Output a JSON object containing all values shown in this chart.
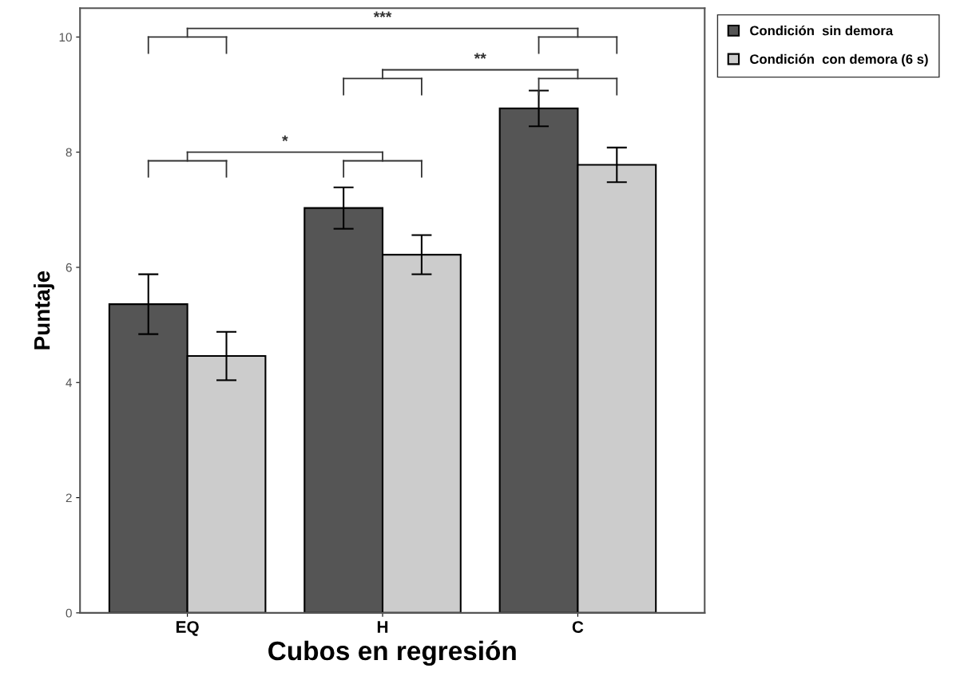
{
  "chart_data": {
    "type": "bar",
    "xlabel": "Cubos en regresión",
    "ylabel": "Puntaje",
    "categories": [
      "EQ",
      "H",
      "C"
    ],
    "series": [
      {
        "name": "Condición  sin demora",
        "color": "#555555",
        "values": [
          5.36,
          7.03,
          8.76
        ],
        "errors": [
          0.52,
          0.36,
          0.31
        ]
      },
      {
        "name": "Condición  con demora (6 s)",
        "color": "#cccccc",
        "values": [
          4.46,
          6.22,
          7.78
        ],
        "errors": [
          0.42,
          0.34,
          0.3
        ]
      }
    ],
    "ylim": [
      0,
      10.5
    ],
    "yticks": [
      0,
      2,
      4,
      6,
      8,
      10
    ],
    "grid": false,
    "legend": "top right",
    "annotations": [
      "***",
      "**",
      "*"
    ]
  }
}
